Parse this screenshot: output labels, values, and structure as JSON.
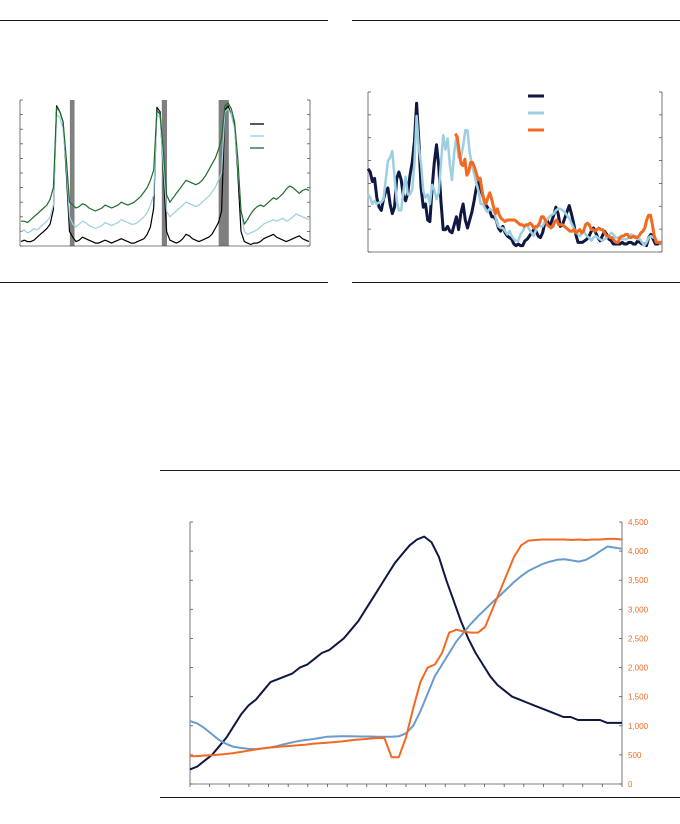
{
  "chart_data": [
    {
      "type": "line",
      "ylim": [
        0,
        10
      ],
      "recession_bands": [
        [
          0.172,
          0.188
        ],
        [
          0.489,
          0.507
        ],
        [
          0.685,
          0.72
        ]
      ],
      "series": [
        {
          "color": "#000000",
          "values": [
            0.3,
            0.4,
            0.3,
            0.3,
            0.4,
            0.6,
            0.8,
            1.0,
            1.2,
            1.5,
            2.5,
            9.6,
            9.2,
            8.5,
            5.0,
            1.0,
            0.6,
            0.3,
            0.4,
            0.6,
            0.5,
            0.4,
            0.3,
            0.2,
            0.2,
            0.3,
            0.4,
            0.3,
            0.2,
            0.3,
            0.4,
            0.5,
            0.4,
            0.3,
            0.2,
            0.2,
            0.3,
            0.4,
            0.5,
            0.8,
            1.3,
            2.6,
            9.5,
            9.2,
            5.0,
            1.0,
            0.4,
            0.3,
            0.2,
            0.3,
            0.5,
            0.8,
            0.7,
            0.5,
            0.4,
            0.3,
            0.4,
            0.5,
            0.6,
            0.8,
            1.2,
            1.6,
            2.4,
            9.3,
            9.6,
            9.0,
            8.2,
            5.0,
            1.0,
            0.3,
            0.2,
            0.1,
            0.2,
            0.2,
            0.3,
            0.5,
            0.6,
            0.7,
            0.8,
            0.6,
            0.5,
            0.4,
            0.3,
            0.4,
            0.5,
            0.6,
            0.7,
            0.5,
            0.4,
            0.3
          ]
        },
        {
          "color": "#9ccfe0",
          "values": [
            1.0,
            1.1,
            0.9,
            1.0,
            1.2,
            1.1,
            1.3,
            1.5,
            1.7,
            2.0,
            2.8,
            9.0,
            8.8,
            8.0,
            5.5,
            2.0,
            1.5,
            1.3,
            1.5,
            1.7,
            1.6,
            1.4,
            1.3,
            1.2,
            1.3,
            1.4,
            1.6,
            1.5,
            1.4,
            1.5,
            1.6,
            1.8,
            1.7,
            1.6,
            1.5,
            1.5,
            1.6,
            1.8,
            2.0,
            2.3,
            2.8,
            3.5,
            9.0,
            8.8,
            5.5,
            2.4,
            2.0,
            2.2,
            2.4,
            2.6,
            2.8,
            3.0,
            2.9,
            2.8,
            2.7,
            2.8,
            3.0,
            3.2,
            3.4,
            3.7,
            4.0,
            4.5,
            5.0,
            9.2,
            9.4,
            9.0,
            8.0,
            5.5,
            2.5,
            1.0,
            0.8,
            0.9,
            1.0,
            1.1,
            1.3,
            1.5,
            1.6,
            1.7,
            1.8,
            1.7,
            1.8,
            1.9,
            1.7,
            1.8,
            2.0,
            2.2,
            2.1,
            2.0,
            1.9,
            1.8
          ]
        },
        {
          "color": "#1f6b2e",
          "values": [
            1.7,
            1.7,
            1.6,
            1.8,
            2.0,
            2.2,
            2.4,
            2.6,
            2.8,
            3.2,
            4.0,
            9.5,
            9.2,
            8.5,
            6.0,
            3.0,
            2.8,
            2.6,
            2.7,
            2.9,
            2.8,
            2.6,
            2.5,
            2.4,
            2.5,
            2.6,
            2.8,
            2.7,
            2.6,
            2.7,
            2.8,
            3.0,
            2.9,
            2.8,
            2.9,
            3.0,
            3.2,
            3.4,
            3.7,
            4.0,
            4.5,
            5.2,
            9.3,
            9.0,
            6.5,
            3.5,
            3.0,
            3.3,
            3.6,
            3.9,
            4.2,
            4.5,
            4.4,
            4.3,
            4.2,
            4.3,
            4.5,
            4.8,
            5.2,
            5.6,
            6.0,
            6.6,
            7.4,
            9.6,
            9.8,
            9.4,
            8.5,
            6.0,
            2.4,
            1.5,
            1.8,
            2.2,
            2.5,
            2.7,
            2.8,
            2.7,
            2.9,
            3.1,
            3.3,
            3.2,
            3.4,
            3.6,
            3.9,
            4.1,
            4.0,
            3.8,
            3.6,
            3.8,
            3.9,
            3.8
          ]
        }
      ]
    },
    {
      "type": "line",
      "ylim": [
        0,
        10
      ],
      "series": [
        {
          "color": "#0f1742",
          "start": 0.0,
          "values": [
            5.2,
            5.0,
            4.4,
            4.6,
            3.4,
            2.8,
            2.6,
            3.3,
            3.8,
            4.0,
            3.0,
            2.4,
            2.8,
            4.6,
            5.0,
            4.5,
            3.5,
            3.2,
            3.7,
            4.8,
            5.6,
            6.9,
            9.3,
            7.0,
            4.0,
            2.8,
            3.0,
            2.0,
            1.9,
            4.0,
            5.6,
            6.7,
            5.4,
            3.2,
            1.4,
            1.4,
            1.6,
            1.3,
            1.2,
            1.7,
            2.2,
            1.4,
            2.4,
            3.0,
            2.0,
            1.5,
            2.0,
            2.5,
            3.2,
            4.0,
            4.6,
            3.9,
            3.5,
            3.0,
            2.8,
            2.6,
            2.2,
            2.2,
            2.0,
            1.5,
            1.3,
            1.6,
            1.2,
            1.0,
            0.9,
            0.8,
            0.5,
            0.4,
            0.5,
            0.4,
            0.4,
            0.7,
            0.8,
            1.0,
            1.2,
            1.4,
            1.3,
            1.0,
            0.9,
            1.2,
            1.8,
            2.0,
            1.6,
            1.9,
            2.3,
            2.8,
            2.4,
            1.6,
            1.7,
            2.1,
            2.5,
            2.9,
            2.4,
            1.8,
            1.1,
            0.6,
            0.6,
            0.6,
            0.7,
            0.8,
            1.0,
            1.3,
            1.5,
            1.2,
            0.9,
            0.7,
            1.0,
            1.3,
            1.1,
            0.8,
            0.7,
            0.5,
            0.5,
            0.5,
            0.5,
            0.6,
            0.5,
            0.5,
            0.6,
            0.6,
            0.5,
            0.5,
            0.7,
            0.6,
            0.5,
            0.5,
            0.4,
            0.9,
            1.1,
            0.8,
            0.5,
            0.5,
            0.6,
            0.5
          ]
        },
        {
          "color": "#9ccfe0",
          "start": 0.0,
          "values": [
            3.6,
            3.4,
            3.0,
            3.2,
            3.0,
            3.1,
            3.1,
            3.3,
            4.5,
            5.7,
            5.9,
            6.3,
            4.7,
            3.2,
            2.6,
            2.6,
            3.8,
            4.7,
            3.6,
            3.6,
            3.9,
            5.5,
            8.5,
            6.5,
            5.5,
            3.8,
            3.4,
            3.6,
            3.0,
            4.2,
            3.9,
            3.3,
            3.7,
            5.5,
            7.3,
            6.4,
            7.1,
            5.5,
            4.5,
            6.2,
            7.2,
            5.9,
            5.9,
            6.6,
            7.6,
            7.6,
            6.2,
            5.5,
            4.9,
            4.3,
            3.8,
            3.0,
            3.0,
            2.7,
            2.5,
            2.7,
            2.6,
            2.6,
            2.0,
            1.6,
            1.5,
            1.5,
            1.3,
            1.1,
            1.3,
            1.0,
            0.8,
            0.7,
            0.7,
            1.1,
            1.3,
            1.6,
            1.7,
            1.4,
            1.2,
            1.0,
            1.4,
            1.7,
            1.6,
            1.6,
            1.9,
            2.0,
            2.2,
            2.3,
            2.4,
            2.6,
            2.7,
            2.7,
            2.6,
            2.5,
            2.3,
            2.1,
            1.8,
            1.5,
            1.3,
            1.1,
            1.0,
            1.2,
            1.2,
            1.0,
            0.9,
            0.7,
            0.9,
            1.0,
            0.9,
            0.8,
            0.7,
            0.8,
            0.9,
            1.0,
            1.2,
            1.1,
            0.9,
            0.9,
            0.9,
            0.8,
            0.8,
            0.8,
            0.9,
            1.1,
            1.0,
            1.0,
            0.8,
            0.8,
            0.6,
            0.4,
            0.6,
            0.9,
            1.0,
            0.9,
            0.9,
            0.6,
            0.6,
            0.5
          ]
        },
        {
          "color": "#f26a21",
          "start": 0.297,
          "values": [
            7.4,
            7.2,
            6.3,
            5.5,
            5.4,
            5.8,
            4.8,
            5.0,
            5.6,
            5.6,
            5.3,
            4.9,
            4.5,
            4.6,
            3.8,
            3.2,
            3.0,
            3.4,
            3.7,
            3.3,
            2.8,
            2.4,
            2.7,
            2.3,
            2.1,
            2.0,
            1.9,
            2.0,
            2.0,
            2.0,
            2.0,
            2.0,
            1.9,
            1.8,
            1.7,
            1.7,
            1.6,
            1.7,
            1.7,
            1.8,
            1.7,
            1.5,
            1.6,
            1.6,
            1.8,
            2.2,
            2.2,
            2.0,
            1.7,
            1.6,
            1.5,
            1.6,
            1.9,
            2.0,
            1.7,
            1.7,
            1.7,
            1.6,
            1.5,
            1.4,
            1.3,
            1.3,
            1.4,
            1.2,
            1.3,
            1.4,
            1.2,
            1.3,
            1.7,
            1.8,
            1.7,
            1.4,
            1.4,
            1.3,
            1.4,
            1.5,
            1.4,
            1.4,
            1.2,
            1.0,
            1.0,
            0.9,
            0.9,
            0.7,
            0.6,
            0.6,
            0.9,
            1.0,
            1.0,
            1.1,
            1.1,
            0.9,
            0.9,
            1.0,
            0.9,
            0.9,
            1.0,
            1.2,
            1.3,
            1.5,
            2.0,
            2.3,
            2.3,
            1.7,
            1.0,
            0.6,
            0.6,
            0.6,
            0.6
          ]
        }
      ]
    },
    {
      "type": "line",
      "y2_ticks": [
        "0",
        "500",
        "1,000",
        "1,500",
        "2,000",
        "2,500",
        "3,000",
        "3,500",
        "4,000",
        "4,500"
      ],
      "ylim_right": [
        0,
        4500
      ],
      "ylim_left": [
        0,
        9
      ],
      "series": [
        {
          "color": "#0f1742",
          "axis": "left",
          "values": [
            0.5,
            0.6,
            0.8,
            1.0,
            1.3,
            1.6,
            2.0,
            2.4,
            2.7,
            2.9,
            3.2,
            3.5,
            3.6,
            3.7,
            3.8,
            4.0,
            4.1,
            4.3,
            4.5,
            4.6,
            4.8,
            5.0,
            5.3,
            5.6,
            6.0,
            6.4,
            6.8,
            7.2,
            7.6,
            7.9,
            8.2,
            8.4,
            8.5,
            8.3,
            7.8,
            7.0,
            6.3,
            5.6,
            5.0,
            4.5,
            4.1,
            3.7,
            3.4,
            3.2,
            3.0,
            2.9,
            2.8,
            2.7,
            2.6,
            2.5,
            2.4,
            2.3,
            2.3,
            2.2,
            2.2,
            2.2,
            2.2,
            2.1,
            2.1,
            2.1
          ]
        },
        {
          "color": "#6a9bcc",
          "axis": "right",
          "values": [
            1080,
            1040,
            960,
            860,
            760,
            690,
            640,
            620,
            605,
            600,
            610,
            625,
            650,
            680,
            710,
            735,
            755,
            770,
            790,
            810,
            815,
            820,
            820,
            818,
            815,
            815,
            810,
            810,
            810,
            820,
            870,
            1000,
            1250,
            1550,
            1850,
            2050,
            2250,
            2450,
            2600,
            2750,
            2880,
            3000,
            3120,
            3230,
            3350,
            3470,
            3570,
            3660,
            3720,
            3780,
            3820,
            3850,
            3860,
            3840,
            3820,
            3850,
            3920,
            4000,
            4080,
            4060,
            4040
          ]
        },
        {
          "color": "#f26a21",
          "axis": "right",
          "values": [
            480,
            480,
            490,
            495,
            505,
            515,
            530,
            550,
            570,
            590,
            610,
            625,
            635,
            645,
            655,
            665,
            675,
            690,
            700,
            710,
            720,
            730,
            745,
            760,
            770,
            780,
            790,
            790,
            460,
            460,
            800,
            1300,
            1750,
            2000,
            2050,
            2250,
            2600,
            2650,
            2620,
            2600,
            2600,
            2700,
            3000,
            3300,
            3600,
            3900,
            4100,
            4180,
            4190,
            4200,
            4200,
            4200,
            4200,
            4190,
            4200,
            4190,
            4200,
            4200,
            4210,
            4210,
            4200
          ]
        }
      ]
    }
  ]
}
